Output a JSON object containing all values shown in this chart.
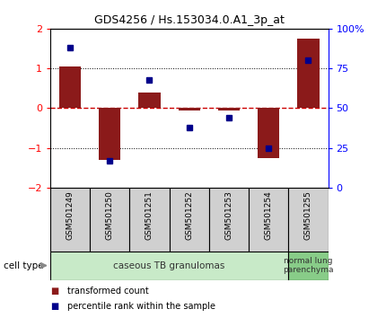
{
  "title": "GDS4256 / Hs.153034.0.A1_3p_at",
  "samples": [
    "GSM501249",
    "GSM501250",
    "GSM501251",
    "GSM501252",
    "GSM501253",
    "GSM501254",
    "GSM501255"
  ],
  "transformed_count": [
    1.05,
    -1.3,
    0.4,
    -0.05,
    -0.05,
    -1.25,
    1.75
  ],
  "percentile_rank": [
    88,
    17,
    68,
    38,
    44,
    25,
    80
  ],
  "ylim_left": [
    -2,
    2
  ],
  "ylim_right": [
    0,
    100
  ],
  "yticks_left": [
    -2,
    -1,
    0,
    1,
    2
  ],
  "yticks_right": [
    0,
    25,
    50,
    75,
    100
  ],
  "ytick_labels_right": [
    "0",
    "25",
    "50",
    "75",
    "100%"
  ],
  "bar_color": "#8B1A1A",
  "dot_color": "#00008B",
  "zero_line_color": "#CC0000",
  "dotted_line_color": "#000000",
  "bg_color": "#FFFFFF",
  "plot_bg": "#FFFFFF",
  "group1_label": "caseous TB granulomas",
  "group1_color": "#C8EAC8",
  "group2_label": "normal lung\nparenchyma",
  "group2_color": "#88CC88",
  "group1_indices": [
    0,
    1,
    2,
    3,
    4,
    5
  ],
  "group2_indices": [
    6
  ],
  "cell_type_label": "cell type",
  "legend_bar_label": "transformed count",
  "legend_dot_label": "percentile rank within the sample",
  "figsize": [
    4.3,
    3.54
  ],
  "dpi": 100
}
